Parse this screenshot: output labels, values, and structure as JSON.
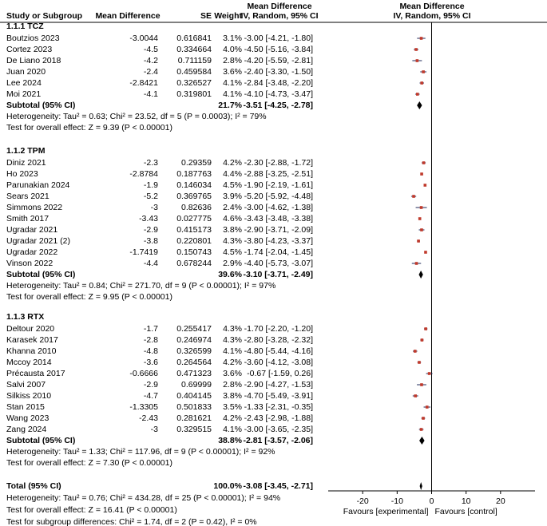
{
  "header": {
    "study": "Study or Subgroup",
    "md": "Mean Difference",
    "se": "SE",
    "weight": "Weight",
    "ci_title": "Mean Difference",
    "ci_sub": "IV, Random, 95% CI",
    "plot_title": "Mean Difference",
    "plot_sub": "IV, Random, 95% CI"
  },
  "groups": [
    {
      "title": "1.1.1 TCZ",
      "rows": [
        {
          "study": "Boutzios 2023",
          "md": -3.0044,
          "se": 0.616841,
          "weight": "3.1%",
          "ci": {
            "est": -3,
            "lo": -4.21,
            "hi": -1.8,
            "label": "-3.00 [-4.21, -1.80]"
          }
        },
        {
          "study": "Cortez 2023",
          "md": -4.5,
          "se": 0.334664,
          "weight": "4.0%",
          "ci": {
            "est": -4.5,
            "lo": -5.16,
            "hi": -3.84,
            "label": "-4.50 [-5.16, -3.84]"
          }
        },
        {
          "study": "De Liano 2018",
          "md": -4.2,
          "se": 0.711159,
          "weight": "2.8%",
          "ci": {
            "est": -4.2,
            "lo": -5.59,
            "hi": -2.81,
            "label": "-4.20 [-5.59, -2.81]"
          }
        },
        {
          "study": "Juan 2020",
          "md": -2.4,
          "se": 0.459584,
          "weight": "3.6%",
          "ci": {
            "est": -2.4,
            "lo": -3.3,
            "hi": -1.5,
            "label": "-2.40 [-3.30, -1.50]"
          }
        },
        {
          "study": "Lee 2024",
          "md": -2.8421,
          "se": 0.326527,
          "weight": "4.1%",
          "ci": {
            "est": -2.84,
            "lo": -3.48,
            "hi": -2.2,
            "label": "-2.84 [-3.48, -2.20]"
          }
        },
        {
          "study": "Moi 2021",
          "md": -4.1,
          "se": 0.319801,
          "weight": "4.1%",
          "ci": {
            "est": -4.1,
            "lo": -4.73,
            "hi": -3.47,
            "label": "-4.10 [-4.73, -3.47]"
          }
        }
      ],
      "subtotal": {
        "label": "Subtotal (95% CI)",
        "weight": "21.7%",
        "ci": {
          "est": -3.51,
          "lo": -4.25,
          "hi": -2.78,
          "label": "-3.51 [-4.25, -2.78]"
        }
      },
      "heterogeneity": "Heterogeneity: Tau² = 0.63; Chi² = 23.52, df = 5 (P = 0.0003); I² = 79%",
      "effect": "Test for overall effect: Z = 9.39 (P < 0.00001)"
    },
    {
      "title": "1.1.2 TPM",
      "rows": [
        {
          "study": "Diniz 2021",
          "md": -2.3,
          "se": 0.29359,
          "weight": "4.2%",
          "ci": {
            "est": -2.3,
            "lo": -2.88,
            "hi": -1.72,
            "label": "-2.30 [-2.88, -1.72]"
          }
        },
        {
          "study": "Ho 2023",
          "md": -2.8784,
          "se": 0.187763,
          "weight": "4.4%",
          "ci": {
            "est": -2.88,
            "lo": -3.25,
            "hi": -2.51,
            "label": "-2.88 [-3.25, -2.51]"
          }
        },
        {
          "study": "Parunakian 2024",
          "md": -1.9,
          "se": 0.146034,
          "weight": "4.5%",
          "ci": {
            "est": -1.9,
            "lo": -2.19,
            "hi": -1.61,
            "label": "-1.90 [-2.19, -1.61]"
          }
        },
        {
          "study": "Sears 2021",
          "md": -5.2,
          "se": 0.369765,
          "weight": "3.9%",
          "ci": {
            "est": -5.2,
            "lo": -5.92,
            "hi": -4.48,
            "label": "-5.20 [-5.92, -4.48]"
          }
        },
        {
          "study": "Simmons 2022",
          "md": -3,
          "se": 0.82636,
          "weight": "2.4%",
          "ci": {
            "est": -3,
            "lo": -4.62,
            "hi": -1.38,
            "label": "-3.00 [-4.62, -1.38]"
          }
        },
        {
          "study": "Smith 2017",
          "md": -3.43,
          "se": 0.027775,
          "weight": "4.6%",
          "ci": {
            "est": -3.43,
            "lo": -3.48,
            "hi": -3.38,
            "label": "-3.43 [-3.48, -3.38]"
          }
        },
        {
          "study": "Ugradar 2021",
          "md": -2.9,
          "se": 0.415173,
          "weight": "3.8%",
          "ci": {
            "est": -2.9,
            "lo": -3.71,
            "hi": -2.09,
            "label": "-2.90 [-3.71, -2.09]"
          }
        },
        {
          "study": "Ugradar 2021 (2)",
          "md": -3.8,
          "se": 0.220801,
          "weight": "4.3%",
          "ci": {
            "est": -3.8,
            "lo": -4.23,
            "hi": -3.37,
            "label": "-3.80 [-4.23, -3.37]"
          }
        },
        {
          "study": "Ugradar 2022",
          "md": -1.7419,
          "se": 0.150743,
          "weight": "4.5%",
          "ci": {
            "est": -1.74,
            "lo": -2.04,
            "hi": -1.45,
            "label": "-1.74 [-2.04, -1.45]"
          }
        },
        {
          "study": "Vinson 2022",
          "md": -4.4,
          "se": 0.678244,
          "weight": "2.9%",
          "ci": {
            "est": -4.4,
            "lo": -5.73,
            "hi": -3.07,
            "label": "-4.40 [-5.73, -3.07]"
          }
        }
      ],
      "subtotal": {
        "label": "Subtotal (95% CI)",
        "weight": "39.6%",
        "ci": {
          "est": -3.1,
          "lo": -3.71,
          "hi": -2.49,
          "label": "-3.10 [-3.71, -2.49]"
        }
      },
      "heterogeneity": "Heterogeneity: Tau² = 0.84; Chi² = 271.70, df = 9 (P < 0.00001); I² = 97%",
      "effect": "Test for overall effect: Z = 9.95 (P < 0.00001)"
    },
    {
      "title": "1.1.3 RTX",
      "rows": [
        {
          "study": "Deltour 2020",
          "md": -1.7,
          "se": 0.255417,
          "weight": "4.3%",
          "ci": {
            "est": -1.7,
            "lo": -2.2,
            "hi": -1.2,
            "label": "-1.70 [-2.20, -1.20]"
          }
        },
        {
          "study": "Karasek 2017",
          "md": -2.8,
          "se": 0.246974,
          "weight": "4.3%",
          "ci": {
            "est": -2.8,
            "lo": -3.28,
            "hi": -2.32,
            "label": "-2.80 [-3.28, -2.32]"
          }
        },
        {
          "study": "Khanna 2010",
          "md": -4.8,
          "se": 0.326599,
          "weight": "4.1%",
          "ci": {
            "est": -4.8,
            "lo": -5.44,
            "hi": -4.16,
            "label": "-4.80 [-5.44, -4.16]"
          }
        },
        {
          "study": "Mccoy 2014",
          "md": -3.6,
          "se": 0.264564,
          "weight": "4.2%",
          "ci": {
            "est": -3.6,
            "lo": -4.12,
            "hi": -3.08,
            "label": "-3.60 [-4.12, -3.08]"
          }
        },
        {
          "study": "Précausta 2017",
          "md": -0.6666,
          "se": 0.471323,
          "weight": "3.6%",
          "ci": {
            "est": -0.67,
            "lo": -1.59,
            "hi": 0.26,
            "label": "-0.67 [-1.59, 0.26]"
          }
        },
        {
          "study": "Salvi 2007",
          "md": -2.9,
          "se": 0.69999,
          "weight": "2.8%",
          "ci": {
            "est": -2.9,
            "lo": -4.27,
            "hi": -1.53,
            "label": "-2.90 [-4.27, -1.53]"
          }
        },
        {
          "study": "Silkiss 2010",
          "md": -4.7,
          "se": 0.404145,
          "weight": "3.8%",
          "ci": {
            "est": -4.7,
            "lo": -5.49,
            "hi": -3.91,
            "label": "-4.70 [-5.49, -3.91]"
          }
        },
        {
          "study": "Stan 2015",
          "md": -1.3305,
          "se": 0.501833,
          "weight": "3.5%",
          "ci": {
            "est": -1.33,
            "lo": -2.31,
            "hi": -0.35,
            "label": "-1.33 [-2.31, -0.35]"
          }
        },
        {
          "study": "Wang 2023",
          "md": -2.43,
          "se": 0.281621,
          "weight": "4.2%",
          "ci": {
            "est": -2.43,
            "lo": -2.98,
            "hi": -1.88,
            "label": "-2.43 [-2.98, -1.88]"
          }
        },
        {
          "study": "Zang 2024",
          "md": -3,
          "se": 0.329515,
          "weight": "4.1%",
          "ci": {
            "est": -3,
            "lo": -3.65,
            "hi": -2.35,
            "label": "-3.00 [-3.65, -2.35]"
          }
        }
      ],
      "subtotal": {
        "label": "Subtotal (95% CI)",
        "weight": "38.8%",
        "ci": {
          "est": -2.81,
          "lo": -3.57,
          "hi": -2.06,
          "label": "-2.81 [-3.57, -2.06]"
        }
      },
      "heterogeneity": "Heterogeneity: Tau² = 1.33; Chi² = 117.96, df = 9 (P < 0.00001); I² = 92%",
      "effect": "Test for overall effect: Z = 7.30 (P < 0.00001)"
    }
  ],
  "total": {
    "label": "Total (95% CI)",
    "weight": "100.0%",
    "ci": {
      "est": -3.08,
      "lo": -3.45,
      "hi": -2.71,
      "label": "-3.08 [-3.45, -2.71]"
    },
    "heterogeneity": "Heterogeneity: Tau² = 0.76; Chi² = 434.28, df = 25 (P < 0.00001); I² = 94%",
    "effect": "Test for overall effect: Z = 16.41 (P < 0.00001)",
    "subgroup": "Test for subgroup differences: Chi² = 1.74, df = 2 (P = 0.42), I² = 0%"
  },
  "axis": {
    "xlim": [
      -30,
      30
    ],
    "xticks": [
      -20,
      -10,
      0,
      10,
      20
    ],
    "left_label": "Favours [experimental]",
    "right_label": "Favours [control]"
  }
}
